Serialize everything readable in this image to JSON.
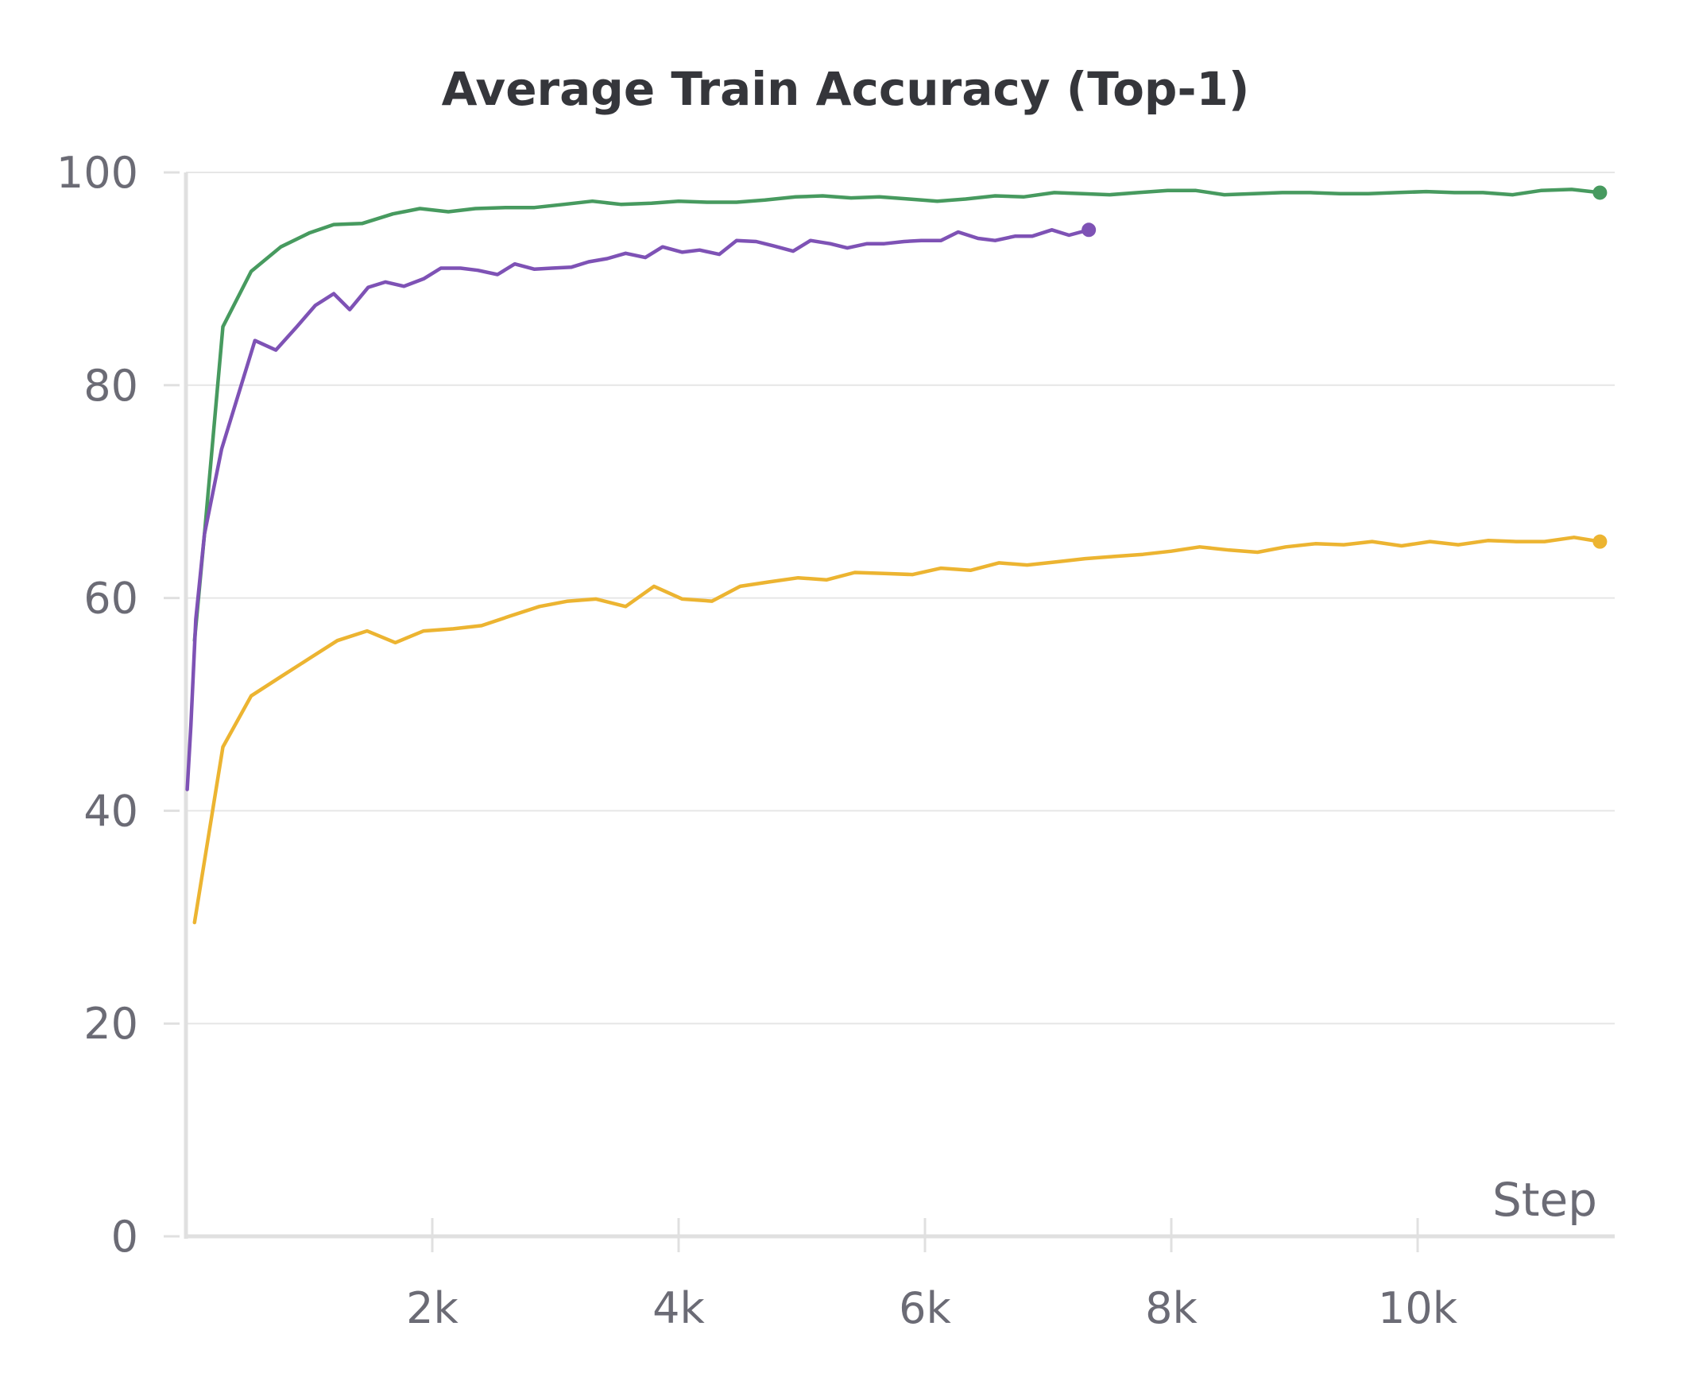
{
  "chart_data": {
    "type": "line",
    "title": "Average Train Accuracy (Top-1)",
    "xlabel": "Step",
    "ylabel": "",
    "xlim": [
      0,
      11600
    ],
    "ylim": [
      0,
      100
    ],
    "x_ticks": [
      {
        "value": 2000,
        "label": "2k"
      },
      {
        "value": 4000,
        "label": "4k"
      },
      {
        "value": 6000,
        "label": "6k"
      },
      {
        "value": 8000,
        "label": "8k"
      },
      {
        "value": 10000,
        "label": "10k"
      }
    ],
    "y_ticks": [
      {
        "value": 0,
        "label": "0"
      },
      {
        "value": 20,
        "label": "20"
      },
      {
        "value": 40,
        "label": "40"
      },
      {
        "value": 60,
        "label": "60"
      },
      {
        "value": 80,
        "label": "80"
      },
      {
        "value": 100,
        "label": "100"
      }
    ],
    "grid": true,
    "colors": {
      "grid": "#e6e6e6",
      "axis": "#e0e0e0",
      "green": "#479a5f",
      "purple": "#7e52b5",
      "yellow": "#ecb431"
    },
    "series": [
      {
        "color": "#479a5f",
        "end_marker": true,
        "points": [
          [
            70,
            56
          ],
          [
            150,
            66
          ],
          [
            300,
            85.5
          ],
          [
            530,
            90.7
          ],
          [
            770,
            93
          ],
          [
            1000,
            94.3
          ],
          [
            1200,
            95.1
          ],
          [
            1430,
            95.2
          ],
          [
            1680,
            96.1
          ],
          [
            1900,
            96.6
          ],
          [
            2130,
            96.3
          ],
          [
            2350,
            96.6
          ],
          [
            2600,
            96.7
          ],
          [
            2830,
            96.7
          ],
          [
            3070,
            97
          ],
          [
            3300,
            97.3
          ],
          [
            3530,
            97
          ],
          [
            3780,
            97.1
          ],
          [
            4000,
            97.3
          ],
          [
            4230,
            97.2
          ],
          [
            4470,
            97.2
          ],
          [
            4700,
            97.4
          ],
          [
            4950,
            97.7
          ],
          [
            5170,
            97.8
          ],
          [
            5400,
            97.6
          ],
          [
            5630,
            97.7
          ],
          [
            5870,
            97.5
          ],
          [
            6100,
            97.3
          ],
          [
            6330,
            97.5
          ],
          [
            6570,
            97.8
          ],
          [
            6800,
            97.7
          ],
          [
            7050,
            98.1
          ],
          [
            7280,
            98
          ],
          [
            7500,
            97.9
          ],
          [
            7730,
            98.1
          ],
          [
            7970,
            98.3
          ],
          [
            8200,
            98.3
          ],
          [
            8430,
            97.9
          ],
          [
            8670,
            98
          ],
          [
            8900,
            98.1
          ],
          [
            9130,
            98.1
          ],
          [
            9370,
            98
          ],
          [
            9600,
            98
          ],
          [
            9830,
            98.1
          ],
          [
            10070,
            98.2
          ],
          [
            10300,
            98.1
          ],
          [
            10530,
            98.1
          ],
          [
            10770,
            97.9
          ],
          [
            11000,
            98.3
          ],
          [
            11250,
            98.4
          ],
          [
            11480,
            98.1
          ]
        ]
      },
      {
        "color": "#7e52b5",
        "end_marker": true,
        "points": [
          [
            10,
            42
          ],
          [
            40,
            48
          ],
          [
            80,
            58
          ],
          [
            150,
            66
          ],
          [
            290,
            74
          ],
          [
            560,
            84.2
          ],
          [
            730,
            83.3
          ],
          [
            900,
            85.5
          ],
          [
            1050,
            87.5
          ],
          [
            1200,
            88.6
          ],
          [
            1330,
            87.1
          ],
          [
            1480,
            89.2
          ],
          [
            1620,
            89.7
          ],
          [
            1770,
            89.3
          ],
          [
            1930,
            90
          ],
          [
            2070,
            91
          ],
          [
            2230,
            91
          ],
          [
            2370,
            90.8
          ],
          [
            2530,
            90.4
          ],
          [
            2670,
            91.4
          ],
          [
            2830,
            90.9
          ],
          [
            2970,
            91
          ],
          [
            3130,
            91.1
          ],
          [
            3270,
            91.6
          ],
          [
            3420,
            91.9
          ],
          [
            3570,
            92.4
          ],
          [
            3730,
            92
          ],
          [
            3870,
            93
          ],
          [
            4030,
            92.5
          ],
          [
            4170,
            92.7
          ],
          [
            4330,
            92.3
          ],
          [
            4470,
            93.6
          ],
          [
            4630,
            93.5
          ],
          [
            4770,
            93.1
          ],
          [
            4930,
            92.6
          ],
          [
            5070,
            93.6
          ],
          [
            5230,
            93.3
          ],
          [
            5370,
            92.9
          ],
          [
            5530,
            93.3
          ],
          [
            5670,
            93.3
          ],
          [
            5830,
            93.5
          ],
          [
            5970,
            93.6
          ],
          [
            6130,
            93.6
          ],
          [
            6270,
            94.4
          ],
          [
            6430,
            93.8
          ],
          [
            6570,
            93.6
          ],
          [
            6730,
            94
          ],
          [
            6870,
            94
          ],
          [
            7030,
            94.6
          ],
          [
            7170,
            94.1
          ],
          [
            7330,
            94.6
          ]
        ]
      },
      {
        "color": "#ecb431",
        "end_marker": true,
        "points": [
          [
            70,
            29.5
          ],
          [
            300,
            46
          ],
          [
            530,
            50.8
          ],
          [
            770,
            52.6
          ],
          [
            1000,
            54.3
          ],
          [
            1230,
            56
          ],
          [
            1470,
            56.9
          ],
          [
            1700,
            55.8
          ],
          [
            1930,
            56.9
          ],
          [
            2170,
            57.1
          ],
          [
            2400,
            57.4
          ],
          [
            2630,
            58.3
          ],
          [
            2870,
            59.2
          ],
          [
            3100,
            59.7
          ],
          [
            3330,
            59.9
          ],
          [
            3570,
            59.2
          ],
          [
            3800,
            61.1
          ],
          [
            4030,
            59.9
          ],
          [
            4270,
            59.7
          ],
          [
            4500,
            61.1
          ],
          [
            4730,
            61.5
          ],
          [
            4970,
            61.9
          ],
          [
            5200,
            61.7
          ],
          [
            5430,
            62.4
          ],
          [
            5670,
            62.3
          ],
          [
            5900,
            62.2
          ],
          [
            6130,
            62.8
          ],
          [
            6370,
            62.6
          ],
          [
            6600,
            63.3
          ],
          [
            6830,
            63.1
          ],
          [
            7070,
            63.4
          ],
          [
            7300,
            63.7
          ],
          [
            7530,
            63.9
          ],
          [
            7770,
            64.1
          ],
          [
            8000,
            64.4
          ],
          [
            8230,
            64.8
          ],
          [
            8470,
            64.5
          ],
          [
            8700,
            64.3
          ],
          [
            8930,
            64.8
          ],
          [
            9170,
            65.1
          ],
          [
            9400,
            65
          ],
          [
            9630,
            65.3
          ],
          [
            9870,
            64.9
          ],
          [
            10100,
            65.3
          ],
          [
            10330,
            65
          ],
          [
            10570,
            65.4
          ],
          [
            10800,
            65.3
          ],
          [
            11030,
            65.3
          ],
          [
            11270,
            65.7
          ],
          [
            11480,
            65.3
          ]
        ]
      }
    ]
  }
}
